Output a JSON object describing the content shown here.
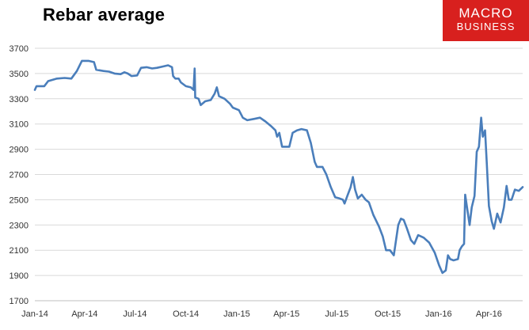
{
  "chart_data": {
    "type": "line",
    "title": "Rebar average",
    "xlabel": "",
    "ylabel": "",
    "ylim": [
      1700,
      3700
    ],
    "y_ticks": [
      1700,
      1900,
      2100,
      2300,
      2500,
      2700,
      2900,
      3100,
      3300,
      3500,
      3700
    ],
    "x_ticks": [
      "Jan-14",
      "Apr-14",
      "Jul-14",
      "Oct-14",
      "Jan-15",
      "Apr-15",
      "Jul-15",
      "Oct-15",
      "Jan-16",
      "Apr-16"
    ],
    "x_range": [
      "Jan-14",
      "Jun-16"
    ],
    "grid": true,
    "legend": "none",
    "series": [
      {
        "color": "#4a7ebb",
        "points": [
          [
            "2014-01-01",
            3370
          ],
          [
            "2014-01-04",
            3400
          ],
          [
            "2014-01-18",
            3400
          ],
          [
            "2014-01-25",
            3440
          ],
          [
            "2014-02-10",
            3460
          ],
          [
            "2014-02-24",
            3465
          ],
          [
            "2014-03-08",
            3460
          ],
          [
            "2014-03-18",
            3520
          ],
          [
            "2014-03-27",
            3600
          ],
          [
            "2014-04-08",
            3600
          ],
          [
            "2014-04-18",
            3590
          ],
          [
            "2014-04-22",
            3530
          ],
          [
            "2014-05-05",
            3520
          ],
          [
            "2014-05-15",
            3515
          ],
          [
            "2014-05-25",
            3500
          ],
          [
            "2014-06-05",
            3495
          ],
          [
            "2014-06-12",
            3510
          ],
          [
            "2014-06-18",
            3500
          ],
          [
            "2014-06-25",
            3480
          ],
          [
            "2014-07-05",
            3485
          ],
          [
            "2014-07-12",
            3545
          ],
          [
            "2014-07-22",
            3550
          ],
          [
            "2014-08-01",
            3540
          ],
          [
            "2014-08-10",
            3545
          ],
          [
            "2014-08-20",
            3555
          ],
          [
            "2014-08-30",
            3565
          ],
          [
            "2014-09-06",
            3550
          ],
          [
            "2014-09-08",
            3480
          ],
          [
            "2014-09-12",
            3460
          ],
          [
            "2014-09-18",
            3460
          ],
          [
            "2014-09-22",
            3430
          ],
          [
            "2014-10-01",
            3400
          ],
          [
            "2014-10-10",
            3390
          ],
          [
            "2014-10-15",
            3370
          ],
          [
            "2014-10-17",
            3540
          ],
          [
            "2014-10-18",
            3310
          ],
          [
            "2014-10-24",
            3300
          ],
          [
            "2014-10-28",
            3250
          ],
          [
            "2014-11-05",
            3280
          ],
          [
            "2014-11-15",
            3290
          ],
          [
            "2014-11-22",
            3340
          ],
          [
            "2014-11-26",
            3390
          ],
          [
            "2014-11-30",
            3320
          ],
          [
            "2014-12-10",
            3300
          ],
          [
            "2014-12-20",
            3260
          ],
          [
            "2014-12-25",
            3230
          ],
          [
            "2015-01-05",
            3210
          ],
          [
            "2015-01-12",
            3150
          ],
          [
            "2015-01-20",
            3130
          ],
          [
            "2015-02-01",
            3140
          ],
          [
            "2015-02-12",
            3150
          ],
          [
            "2015-02-22",
            3120
          ],
          [
            "2015-03-05",
            3080
          ],
          [
            "2015-03-12",
            3050
          ],
          [
            "2015-03-15",
            3000
          ],
          [
            "2015-03-19",
            3030
          ],
          [
            "2015-03-24",
            2920
          ],
          [
            "2015-04-01",
            2920
          ],
          [
            "2015-04-06",
            2920
          ],
          [
            "2015-04-12",
            3030
          ],
          [
            "2015-04-20",
            3050
          ],
          [
            "2015-04-28",
            3060
          ],
          [
            "2015-05-08",
            3050
          ],
          [
            "2015-05-15",
            2950
          ],
          [
            "2015-05-22",
            2800
          ],
          [
            "2015-05-26",
            2760
          ],
          [
            "2015-06-05",
            2760
          ],
          [
            "2015-06-12",
            2700
          ],
          [
            "2015-06-20",
            2600
          ],
          [
            "2015-06-28",
            2520
          ],
          [
            "2015-07-06",
            2510
          ],
          [
            "2015-07-12",
            2500
          ],
          [
            "2015-07-15",
            2470
          ],
          [
            "2015-07-20",
            2530
          ],
          [
            "2015-07-26",
            2600
          ],
          [
            "2015-07-30",
            2680
          ],
          [
            "2015-08-03",
            2580
          ],
          [
            "2015-08-08",
            2510
          ],
          [
            "2015-08-15",
            2540
          ],
          [
            "2015-08-22",
            2500
          ],
          [
            "2015-08-28",
            2480
          ],
          [
            "2015-09-05",
            2380
          ],
          [
            "2015-09-15",
            2290
          ],
          [
            "2015-09-22",
            2210
          ],
          [
            "2015-09-28",
            2100
          ],
          [
            "2015-10-05",
            2100
          ],
          [
            "2015-10-12",
            2060
          ],
          [
            "2015-10-15",
            2150
          ],
          [
            "2015-10-20",
            2300
          ],
          [
            "2015-10-25",
            2350
          ],
          [
            "2015-10-30",
            2340
          ],
          [
            "2015-11-05",
            2270
          ],
          [
            "2015-11-12",
            2180
          ],
          [
            "2015-11-18",
            2150
          ],
          [
            "2015-11-25",
            2220
          ],
          [
            "2015-12-05",
            2200
          ],
          [
            "2015-12-15",
            2160
          ],
          [
            "2015-12-25",
            2080
          ],
          [
            "2016-01-02",
            1980
          ],
          [
            "2016-01-08",
            1920
          ],
          [
            "2016-01-14",
            1940
          ],
          [
            "2016-01-18",
            2060
          ],
          [
            "2016-01-22",
            2030
          ],
          [
            "2016-01-28",
            2020
          ],
          [
            "2016-02-05",
            2030
          ],
          [
            "2016-02-08",
            2100
          ],
          [
            "2016-02-12",
            2130
          ],
          [
            "2016-02-16",
            2150
          ],
          [
            "2016-02-18",
            2540
          ],
          [
            "2016-02-22",
            2420
          ],
          [
            "2016-02-26",
            2300
          ],
          [
            "2016-03-01",
            2440
          ],
          [
            "2016-03-06",
            2530
          ],
          [
            "2016-03-10",
            2880
          ],
          [
            "2016-03-14",
            2920
          ],
          [
            "2016-03-18",
            3150
          ],
          [
            "2016-03-21",
            3000
          ],
          [
            "2016-03-25",
            3050
          ],
          [
            "2016-03-28",
            2800
          ],
          [
            "2016-04-01",
            2450
          ],
          [
            "2016-04-06",
            2330
          ],
          [
            "2016-04-10",
            2270
          ],
          [
            "2016-04-16",
            2390
          ],
          [
            "2016-04-22",
            2320
          ],
          [
            "2016-04-28",
            2440
          ],
          [
            "2016-05-03",
            2610
          ],
          [
            "2016-05-07",
            2500
          ],
          [
            "2016-05-12",
            2500
          ],
          [
            "2016-05-18",
            2580
          ],
          [
            "2016-05-25",
            2570
          ],
          [
            "2016-06-01",
            2600
          ]
        ]
      }
    ]
  },
  "logo": {
    "line1": "MACRO",
    "line2": "BUSINESS",
    "color": "#d8201e"
  }
}
